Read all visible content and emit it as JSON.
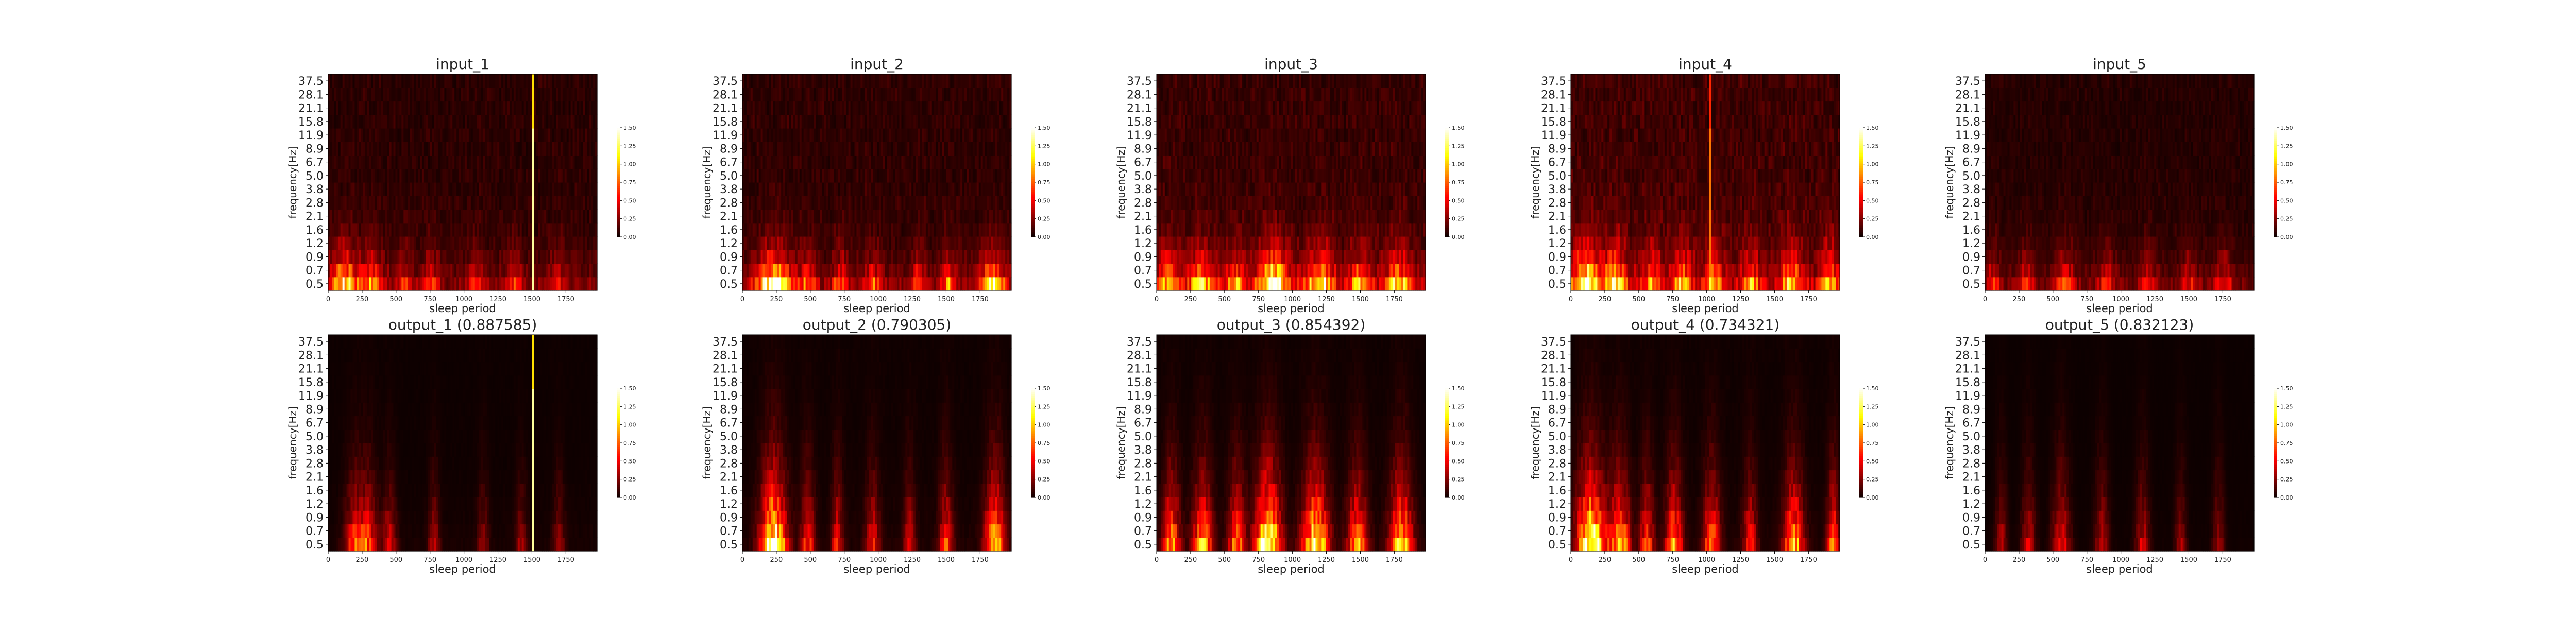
{
  "figure": {
    "rows": 2,
    "cols": 5
  },
  "chart_data": [
    {
      "type": "heatmap",
      "title": "input_1",
      "xlabel": "sleep period",
      "ylabel": "frequency[Hz]",
      "xlim": [
        0,
        1980
      ],
      "profile": "in1"
    },
    {
      "type": "heatmap",
      "title": "input_2",
      "xlabel": "sleep period",
      "ylabel": "frequency[Hz]",
      "xlim": [
        0,
        1980
      ],
      "profile": "in2"
    },
    {
      "type": "heatmap",
      "title": "input_3",
      "xlabel": "sleep period",
      "ylabel": "frequency[Hz]",
      "xlim": [
        0,
        1980
      ],
      "profile": "in3"
    },
    {
      "type": "heatmap",
      "title": "input_4",
      "xlabel": "sleep period",
      "ylabel": "frequency[Hz]",
      "xlim": [
        0,
        1980
      ],
      "profile": "in4"
    },
    {
      "type": "heatmap",
      "title": "input_5",
      "xlabel": "sleep period",
      "ylabel": "frequency[Hz]",
      "xlim": [
        0,
        1980
      ],
      "profile": "in5"
    },
    {
      "type": "heatmap",
      "title": "output_1 (0.887585)",
      "xlabel": "sleep period",
      "ylabel": "frequency[Hz]",
      "xlim": [
        0,
        1980
      ],
      "profile": "out1"
    },
    {
      "type": "heatmap",
      "title": "output_2 (0.790305)",
      "xlabel": "sleep period",
      "ylabel": "frequency[Hz]",
      "xlim": [
        0,
        1980
      ],
      "profile": "out2"
    },
    {
      "type": "heatmap",
      "title": "output_3 (0.854392)",
      "xlabel": "sleep period",
      "ylabel": "frequency[Hz]",
      "xlim": [
        0,
        1980
      ],
      "profile": "out3"
    },
    {
      "type": "heatmap",
      "title": "output_4 (0.734321)",
      "xlabel": "sleep period",
      "ylabel": "frequency[Hz]",
      "xlim": [
        0,
        1980
      ],
      "profile": "out4"
    },
    {
      "type": "heatmap",
      "title": "output_5 (0.832123)",
      "xlabel": "sleep period",
      "ylabel": "frequency[Hz]",
      "xlim": [
        0,
        1980
      ],
      "profile": "out5"
    }
  ],
  "shared_axes": {
    "y_tick_labels": [
      "0.5",
      "0.7",
      "0.9",
      "1.2",
      "1.6",
      "2.1",
      "2.8",
      "3.8",
      "5.0",
      "6.7",
      "8.9",
      "11.9",
      "15.8",
      "21.1",
      "28.1",
      "37.5"
    ],
    "x_tick_labels": [
      "0",
      "250",
      "500",
      "750",
      "1000",
      "1250",
      "1500",
      "1750"
    ],
    "x_tick_values": [
      0,
      250,
      500,
      750,
      1000,
      1250,
      1500,
      1750
    ]
  },
  "colorbar": {
    "colormap": "hot",
    "vmin": 0.0,
    "vmax": 1.5,
    "tick_labels": [
      "0.00",
      "0.25",
      "0.50",
      "0.75",
      "1.00",
      "1.25",
      "1.50"
    ],
    "tick_values": [
      0,
      0.25,
      0.5,
      0.75,
      1.0,
      1.25,
      1.5
    ]
  }
}
